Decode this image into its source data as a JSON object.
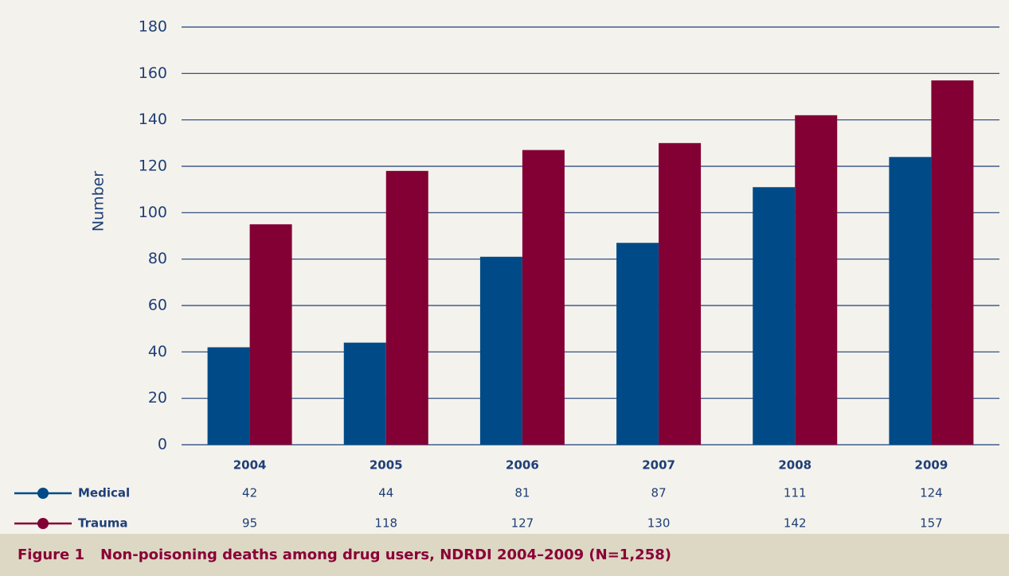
{
  "chart_data": {
    "type": "bar",
    "y_label": "Number",
    "categories": [
      "2004",
      "2005",
      "2006",
      "2007",
      "2008",
      "2009"
    ],
    "series": [
      {
        "name": "Medical",
        "color": "#004a87",
        "values": [
          42,
          44,
          81,
          87,
          111,
          124
        ]
      },
      {
        "name": "Trauma",
        "color": "#820034",
        "values": [
          95,
          118,
          127,
          130,
          142,
          157
        ]
      }
    ],
    "ylim": [
      0,
      180
    ],
    "yticks": [
      0,
      20,
      40,
      60,
      80,
      100,
      120,
      140,
      160,
      180
    ],
    "grid": true,
    "figure_label": "Figure 1",
    "caption": "Non-poisoning deaths among drug users, NDRDI 2004–2009 (N=1,258)"
  }
}
